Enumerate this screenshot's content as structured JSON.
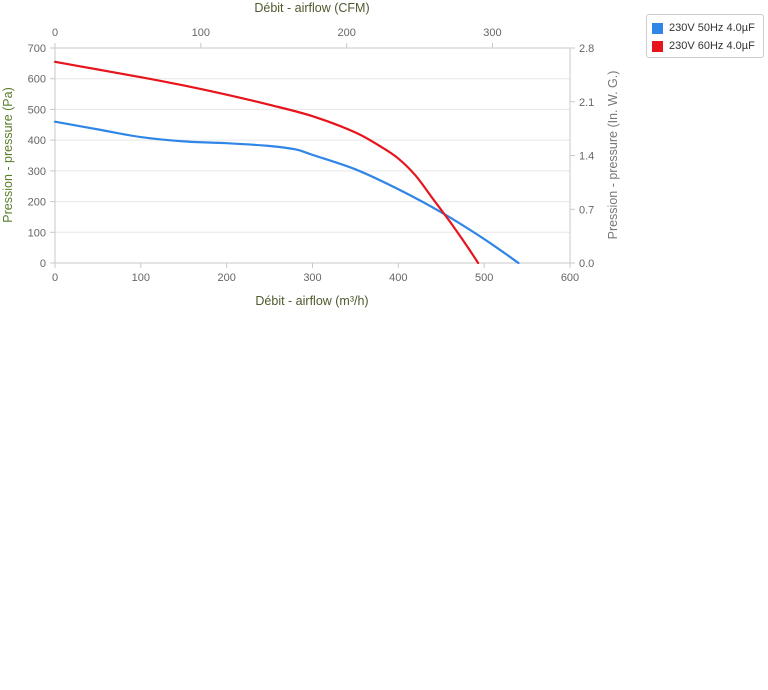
{
  "chart_data": {
    "type": "line",
    "x_bottom": {
      "label": "Débit - airflow (m³/h)",
      "range": [
        0,
        600
      ],
      "ticks": [
        "0",
        "100",
        "200",
        "300",
        "400",
        "500",
        "600"
      ],
      "label_color": "#4d5a2e"
    },
    "x_top": {
      "label": "Débit - airflow (CFM)",
      "range": [
        0,
        353.15
      ],
      "ticks": [
        "0",
        "100",
        "200",
        "300"
      ],
      "label_color": "#4d5a2e"
    },
    "y_left": {
      "label": "Pression - pressure (Pa)",
      "range": [
        0,
        700
      ],
      "ticks": [
        "0",
        "100",
        "200",
        "300",
        "400",
        "500",
        "600",
        "700"
      ],
      "label_color": "#5a7d2a"
    },
    "y_right": {
      "label": "Pression - pressure (In. W. G.)",
      "range": [
        0,
        2.8
      ],
      "ticks": [
        "0.0",
        "0.7",
        "1.4",
        "2.1",
        "2.8"
      ],
      "label_color": "#777777"
    },
    "grid": true,
    "legend_position": "top-right",
    "series": [
      {
        "name": "230V 50Hz 4.0µF",
        "color": "#2f86e6",
        "x": [
          0,
          50,
          100,
          150,
          200,
          250,
          280,
          300,
          350,
          400,
          450,
          500,
          540
        ],
        "y": [
          460,
          435,
          410,
          396,
          390,
          381,
          370,
          352,
          305,
          240,
          165,
          78,
          0
        ]
      },
      {
        "name": "230V 60Hz 4.0µF",
        "color": "#e8141c",
        "x": [
          0,
          50,
          100,
          150,
          200,
          250,
          300,
          350,
          380,
          400,
          420,
          440,
          460,
          480,
          493
        ],
        "y": [
          655,
          630,
          605,
          578,
          548,
          515,
          478,
          425,
          378,
          340,
          285,
          210,
          135,
          55,
          0
        ]
      }
    ]
  }
}
